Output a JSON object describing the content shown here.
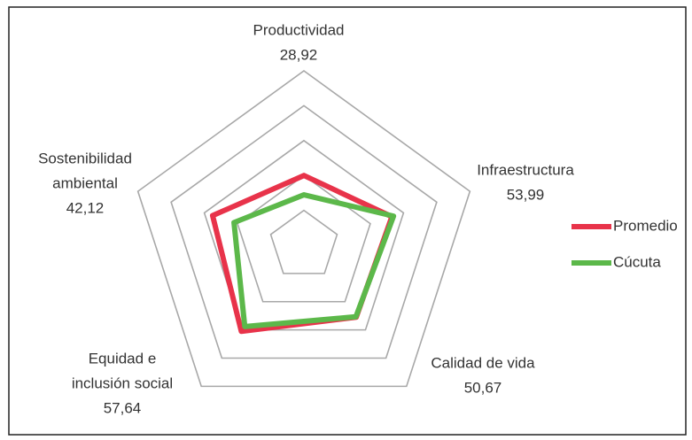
{
  "chart_data": {
    "type": "radar",
    "categories": [
      [
        "Productividad"
      ],
      [
        "Infraestructura"
      ],
      [
        "Calidad de vida"
      ],
      [
        "Equidad e",
        "inclusión social"
      ],
      [
        "Sostenibilidad",
        "ambiental"
      ]
    ],
    "rlim": [
      0,
      100
    ],
    "rticks": [
      20,
      40,
      60,
      80,
      100
    ],
    "grid": true,
    "legend": "right",
    "series": [
      {
        "name": "Promedio",
        "color": "#e8334a",
        "values": [
          40,
          53,
          51,
          61,
          55
        ]
      },
      {
        "name": "Cúcuta",
        "color": "#5cb84a",
        "values": [
          28.92,
          53.99,
          50.67,
          57.64,
          42.12
        ],
        "value_labels": [
          "28,92",
          "53,99",
          "50,67",
          "57,64",
          "42,12"
        ]
      }
    ]
  }
}
